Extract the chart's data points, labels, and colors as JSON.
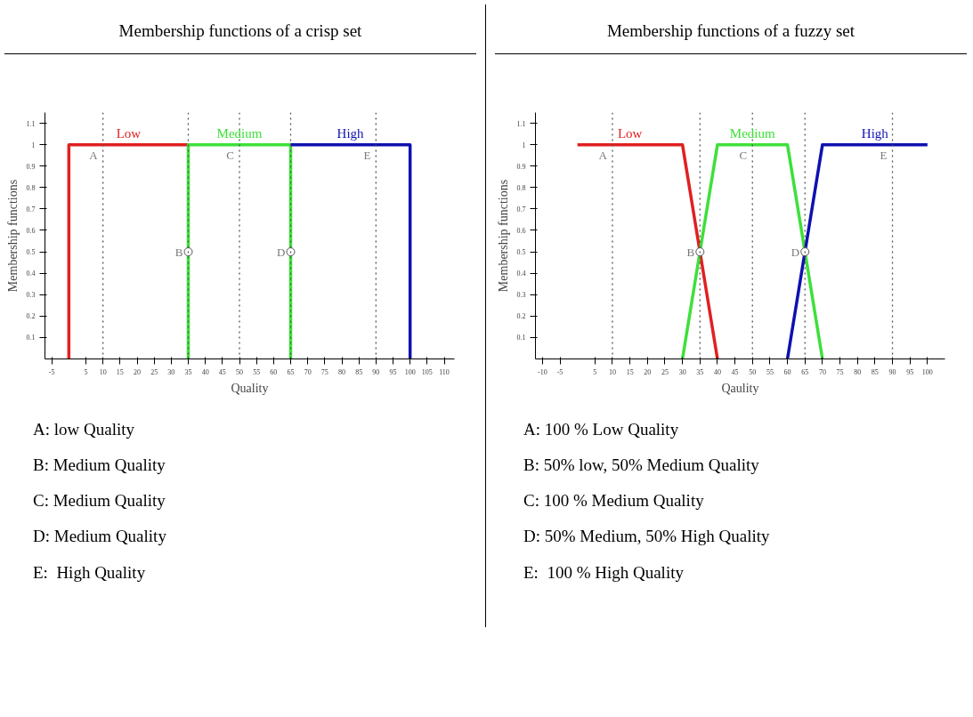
{
  "chart_data": [
    {
      "type": "line",
      "title": "Membership functions of a crisp set",
      "ylabel": "Membership functions",
      "xlabel": "Quality",
      "xlim": [
        -7,
        113
      ],
      "ylim": [
        0,
        1.15
      ],
      "xticks": [
        -5,
        5,
        10,
        15,
        20,
        25,
        30,
        35,
        40,
        45,
        50,
        55,
        60,
        65,
        70,
        75,
        80,
        85,
        90,
        95,
        100,
        105,
        110
      ],
      "yticks": [
        0.1,
        0.2,
        0.3,
        0.4,
        0.5,
        0.6,
        0.7,
        0.8,
        0.9,
        1,
        1.1
      ],
      "series": [
        {
          "name": "Low",
          "color": "#e02020",
          "x": [
            0,
            0,
            35
          ],
          "values": [
            0,
            1,
            1
          ]
        },
        {
          "name": "Medium",
          "color": "#3ee03a",
          "x": [
            35,
            35,
            65,
            65
          ],
          "values": [
            0,
            1,
            1,
            0
          ]
        },
        {
          "name": "High",
          "color": "#1010b0",
          "x": [
            65,
            100,
            100
          ],
          "values": [
            1,
            1,
            0
          ]
        },
        {
          "type": "scatter",
          "marker": "circle",
          "color": "#555555",
          "x": [
            35,
            65
          ],
          "values": [
            0.5,
            0.5
          ]
        }
      ],
      "ref_lines": [
        {
          "axis": "x",
          "value": 10,
          "color": "#555555",
          "line_style": "dotted"
        },
        {
          "axis": "x",
          "value": 35,
          "color": "#555555",
          "line_style": "dotted"
        },
        {
          "axis": "x",
          "value": 50,
          "color": "#555555",
          "line_style": "dotted"
        },
        {
          "axis": "x",
          "value": 65,
          "color": "#555555",
          "line_style": "dotted"
        },
        {
          "axis": "x",
          "value": 90,
          "color": "#555555",
          "line_style": "dotted"
        }
      ],
      "annotations": [
        {
          "text": "A",
          "x": 10,
          "y": 0.95
        },
        {
          "text": "B",
          "x": 35,
          "y": 0.5
        },
        {
          "text": "C",
          "x": 50,
          "y": 0.95
        },
        {
          "text": "D",
          "x": 65,
          "y": 0.5
        },
        {
          "text": "E",
          "x": 90,
          "y": 0.95
        },
        "A: low Quality",
        "B: Medium Quality",
        "C: Medium Quality",
        "D: Medium Quality",
        "E:  High Quality"
      ]
    },
    {
      "type": "line",
      "title": "Membership functions of a fuzzy set",
      "ylabel": "Membership functions",
      "xlabel": "Qaulity",
      "xlim": [
        -12,
        105
      ],
      "ylim": [
        0,
        1.15
      ],
      "xticks": [
        -10,
        -5,
        5,
        10,
        15,
        20,
        25,
        30,
        35,
        40,
        45,
        50,
        55,
        60,
        65,
        70,
        75,
        80,
        85,
        90,
        95,
        100
      ],
      "yticks": [
        0.1,
        0.2,
        0.3,
        0.4,
        0.5,
        0.6,
        0.7,
        0.8,
        0.9,
        1,
        1.1
      ],
      "series": [
        {
          "name": "Low",
          "color": "#e02020",
          "x": [
            0,
            30,
            40
          ],
          "values": [
            1,
            1,
            0
          ]
        },
        {
          "name": "Medium",
          "color": "#3ee03a",
          "x": [
            30,
            40,
            60,
            70
          ],
          "values": [
            0,
            1,
            1,
            0
          ]
        },
        {
          "name": "High",
          "color": "#1010b0",
          "x": [
            60,
            70,
            100
          ],
          "values": [
            0,
            1,
            1
          ]
        },
        {
          "type": "scatter",
          "marker": "circle",
          "color": "#555555",
          "x": [
            35,
            65
          ],
          "values": [
            0.5,
            0.5
          ]
        }
      ],
      "ref_lines": [
        {
          "axis": "x",
          "value": 10,
          "color": "#555555",
          "line_style": "dotted"
        },
        {
          "axis": "x",
          "value": 35,
          "color": "#555555",
          "line_style": "dotted"
        },
        {
          "axis": "x",
          "value": 50,
          "color": "#555555",
          "line_style": "dotted"
        },
        {
          "axis": "x",
          "value": 65,
          "color": "#555555",
          "line_style": "dotted"
        },
        {
          "axis": "x",
          "value": 90,
          "color": "#555555",
          "line_style": "dotted"
        }
      ],
      "annotations": [
        {
          "text": "A",
          "x": 10,
          "y": 0.95
        },
        {
          "text": "B",
          "x": 35,
          "y": 0.5
        },
        {
          "text": "C",
          "x": 50,
          "y": 0.95
        },
        {
          "text": "D",
          "x": 65,
          "y": 0.5
        },
        {
          "text": "E",
          "x": 90,
          "y": 0.95
        },
        "A: 100 % Low Quality",
        "B: 50% low, 50% Medium Quality",
        "C: 100 % Medium Quality",
        "D: 50% Medium, 50% High Quality",
        "E:  100 % High Quality"
      ]
    }
  ]
}
